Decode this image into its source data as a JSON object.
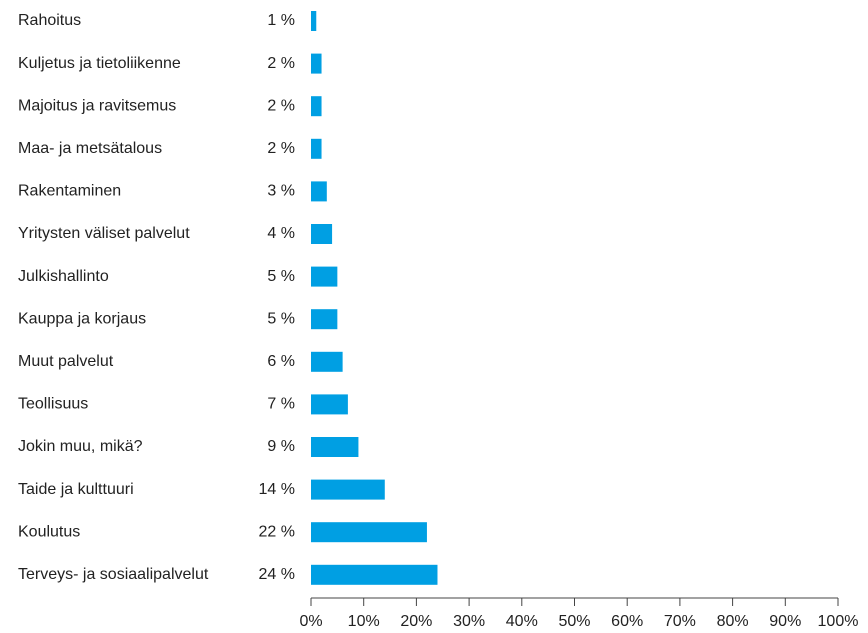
{
  "chart_data": {
    "type": "bar",
    "orientation": "horizontal",
    "categories": [
      "Rahoitus",
      "Kuljetus ja tietoliikenne",
      "Majoitus ja ravitsemus",
      "Maa- ja metsätalous",
      "Rakentaminen",
      "Yritysten väliset palvelut",
      "Julkishallinto",
      "Kauppa ja korjaus",
      "Muut palvelut",
      "Teollisuus",
      "Jokin muu, mikä?",
      "Taide ja kulttuuri",
      "Koulutus",
      "Terveys- ja sosiaalipalvelut"
    ],
    "values": [
      1,
      2,
      2,
      2,
      3,
      4,
      5,
      5,
      6,
      7,
      9,
      14,
      22,
      24
    ],
    "value_labels": [
      "1 %",
      "2 %",
      "2 %",
      "2 %",
      "3 %",
      "4 %",
      "5 %",
      "5 %",
      "6 %",
      "7 %",
      "9 %",
      "14 %",
      "22 %",
      "24 %"
    ],
    "color": "#009fe3",
    "xlim": [
      0,
      100
    ],
    "xticks": [
      {
        "value": 0,
        "label": "0%"
      },
      {
        "value": 10,
        "label": "10%"
      },
      {
        "value": 20,
        "label": "20%"
      },
      {
        "value": 30,
        "label": "30%"
      },
      {
        "value": 40,
        "label": "40%"
      },
      {
        "value": 50,
        "label": "50%"
      },
      {
        "value": 60,
        "label": "60%"
      },
      {
        "value": 70,
        "label": "70%"
      },
      {
        "value": 80,
        "label": "80%"
      },
      {
        "value": 90,
        "label": "90%"
      },
      {
        "value": 100,
        "label": "100%"
      }
    ],
    "grid": false
  }
}
